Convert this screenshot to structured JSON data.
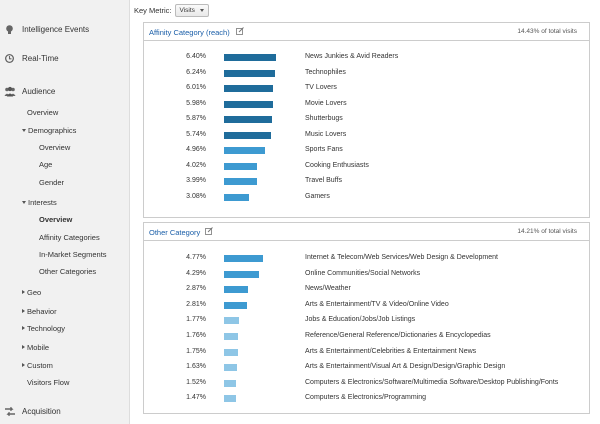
{
  "sidebar": {
    "sections": [
      {
        "label": "Intelligence Events",
        "icon": "lightbulb-icon"
      },
      {
        "label": "Real-Time",
        "icon": "clock-icon"
      },
      {
        "label": "Audience",
        "icon": "people-icon"
      },
      {
        "label": "Acquisition",
        "icon": "acquisition-icon"
      }
    ],
    "audience_items": [
      {
        "label": "Overview",
        "level": 1,
        "arrow": "none",
        "active": false
      },
      {
        "label": "Demographics",
        "level": 1,
        "arrow": "down",
        "active": false
      },
      {
        "label": "Overview",
        "level": 2,
        "arrow": "none",
        "active": false
      },
      {
        "label": "Age",
        "level": 2,
        "arrow": "none",
        "active": false
      },
      {
        "label": "Gender",
        "level": 2,
        "arrow": "none",
        "active": false
      },
      {
        "label": "Interests",
        "level": 1,
        "arrow": "down",
        "active": false
      },
      {
        "label": "Overview",
        "level": 2,
        "arrow": "none",
        "active": true
      },
      {
        "label": "Affinity Categories",
        "level": 2,
        "arrow": "none",
        "active": false
      },
      {
        "label": "In-Market Segments",
        "level": 2,
        "arrow": "none",
        "active": false
      },
      {
        "label": "Other Categories",
        "level": 2,
        "arrow": "none",
        "active": false
      },
      {
        "label": "Geo",
        "level": 1,
        "arrow": "right",
        "active": false
      },
      {
        "label": "Behavior",
        "level": 1,
        "arrow": "right",
        "active": false
      },
      {
        "label": "Technology",
        "level": 1,
        "arrow": "right",
        "active": false
      },
      {
        "label": "Mobile",
        "level": 1,
        "arrow": "right",
        "active": false
      },
      {
        "label": "Custom",
        "level": 1,
        "arrow": "right",
        "active": false
      },
      {
        "label": "Visitors Flow",
        "level": 1,
        "arrow": "none",
        "active": false
      }
    ]
  },
  "key_metric": {
    "label": "Key Metric:",
    "value": "Visits"
  },
  "panels": [
    {
      "title": "Affinity Category (reach)",
      "total": "14.43% of total visits",
      "rows": [
        {
          "pct": "6.40%",
          "value": 6.4,
          "name": "News Junkies & Avid Readers"
        },
        {
          "pct": "6.24%",
          "value": 6.24,
          "name": "Technophiles"
        },
        {
          "pct": "6.01%",
          "value": 6.01,
          "name": "TV Lovers"
        },
        {
          "pct": "5.98%",
          "value": 5.98,
          "name": "Movie Lovers"
        },
        {
          "pct": "5.87%",
          "value": 5.87,
          "name": "Shutterbugs"
        },
        {
          "pct": "5.74%",
          "value": 5.74,
          "name": "Music Lovers"
        },
        {
          "pct": "4.96%",
          "value": 4.96,
          "name": "Sports Fans"
        },
        {
          "pct": "4.02%",
          "value": 4.02,
          "name": "Cooking Enthusiasts"
        },
        {
          "pct": "3.99%",
          "value": 3.99,
          "name": "Travel Buffs"
        },
        {
          "pct": "3.08%",
          "value": 3.08,
          "name": "Gamers"
        }
      ]
    },
    {
      "title": "Other Category",
      "total": "14.21% of total visits",
      "rows": [
        {
          "pct": "4.77%",
          "value": 4.77,
          "name": "Internet & Telecom/Web Services/Web Design & Development"
        },
        {
          "pct": "4.29%",
          "value": 4.29,
          "name": "Online Communities/Social Networks"
        },
        {
          "pct": "2.87%",
          "value": 2.87,
          "name": "News/Weather"
        },
        {
          "pct": "2.81%",
          "value": 2.81,
          "name": "Arts & Entertainment/TV & Video/Online Video"
        },
        {
          "pct": "1.77%",
          "value": 1.77,
          "name": "Jobs & Education/Jobs/Job Listings"
        },
        {
          "pct": "1.76%",
          "value": 1.76,
          "name": "Reference/General Reference/Dictionaries & Encyclopedias"
        },
        {
          "pct": "1.75%",
          "value": 1.75,
          "name": "Arts & Entertainment/Celebrities & Entertainment News"
        },
        {
          "pct": "1.63%",
          "value": 1.63,
          "name": "Arts & Entertainment/Visual Art & Design/Design/Graphic Design"
        },
        {
          "pct": "1.52%",
          "value": 1.52,
          "name": "Computers & Electronics/Software/Multimedia Software/Desktop Publishing/Fonts"
        },
        {
          "pct": "1.47%",
          "value": 1.47,
          "name": "Computers & Electronics/Programming"
        }
      ]
    }
  ],
  "colors": {
    "bar_dark": "#1f6c9b",
    "bar_mid": "#3d9ad1",
    "bar_light": "#8ec6e6",
    "link": "#1a5ea8"
  }
}
